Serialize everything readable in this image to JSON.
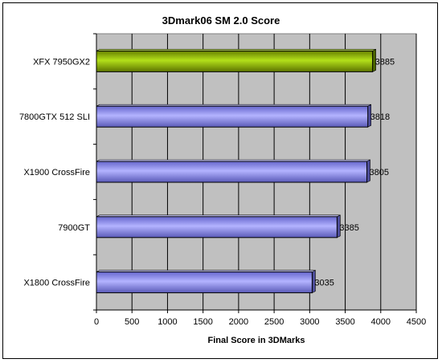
{
  "chart_data": {
    "type": "bar",
    "orientation": "horizontal",
    "title": "3Dmark06 SM 2.0 Score",
    "xlabel": "Final Score in 3DMarks",
    "ylabel": "",
    "categories": [
      "XFX 7950GX2",
      "7800GTX 512 SLI",
      "X1900 CrossFire",
      "7900GT",
      "X1800 CrossFire"
    ],
    "values": [
      3885,
      3818,
      3805,
      3385,
      3035
    ],
    "value_labels": [
      "3885",
      "3818",
      "3805",
      "3385",
      "3035"
    ],
    "bar_colors": [
      "#99cc00",
      "#9999ff",
      "#9999ff",
      "#9999ff",
      "#9999ff"
    ],
    "xlim": [
      0,
      4500
    ],
    "xticks": [
      0,
      500,
      1000,
      1500,
      2000,
      2500,
      3000,
      3500,
      4000,
      4500
    ],
    "grid": true,
    "legend": "none",
    "plot_background": "#c0c0c0"
  }
}
